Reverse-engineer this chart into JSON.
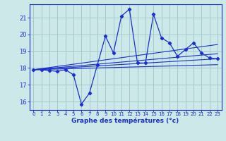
{
  "title": "Graphe des températures (°c)",
  "bg_color": "#cce8e8",
  "grid_color": "#9cc4c4",
  "line_color": "#1a2fcc",
  "ylim": [
    15.5,
    21.8
  ],
  "xlim": [
    -0.5,
    23.5
  ],
  "yticks": [
    16,
    17,
    18,
    19,
    20,
    21
  ],
  "xticks": [
    0,
    1,
    2,
    3,
    4,
    5,
    6,
    7,
    8,
    9,
    10,
    11,
    12,
    13,
    14,
    15,
    16,
    17,
    18,
    19,
    20,
    21,
    22,
    23
  ],
  "series": [
    [
      0,
      17.9
    ],
    [
      1,
      17.9
    ],
    [
      2,
      17.85
    ],
    [
      3,
      17.8
    ],
    [
      4,
      17.9
    ],
    [
      5,
      17.6
    ],
    [
      6,
      15.85
    ],
    [
      7,
      16.5
    ],
    [
      8,
      18.2
    ],
    [
      9,
      19.9
    ],
    [
      10,
      18.9
    ],
    [
      11,
      21.1
    ],
    [
      12,
      21.5
    ],
    [
      13,
      18.3
    ],
    [
      14,
      18.3
    ],
    [
      15,
      21.2
    ],
    [
      16,
      19.8
    ],
    [
      17,
      19.5
    ],
    [
      18,
      18.7
    ],
    [
      19,
      19.1
    ],
    [
      20,
      19.5
    ],
    [
      21,
      18.9
    ],
    [
      22,
      18.6
    ],
    [
      23,
      18.55
    ]
  ],
  "trend_lines": [
    {
      "x": [
        0,
        23
      ],
      "y": [
        17.9,
        18.55
      ]
    },
    {
      "x": [
        0,
        23
      ],
      "y": [
        17.9,
        18.85
      ]
    },
    {
      "x": [
        0,
        23
      ],
      "y": [
        17.9,
        18.2
      ]
    },
    {
      "x": [
        0,
        23
      ],
      "y": [
        17.9,
        19.4
      ]
    }
  ]
}
